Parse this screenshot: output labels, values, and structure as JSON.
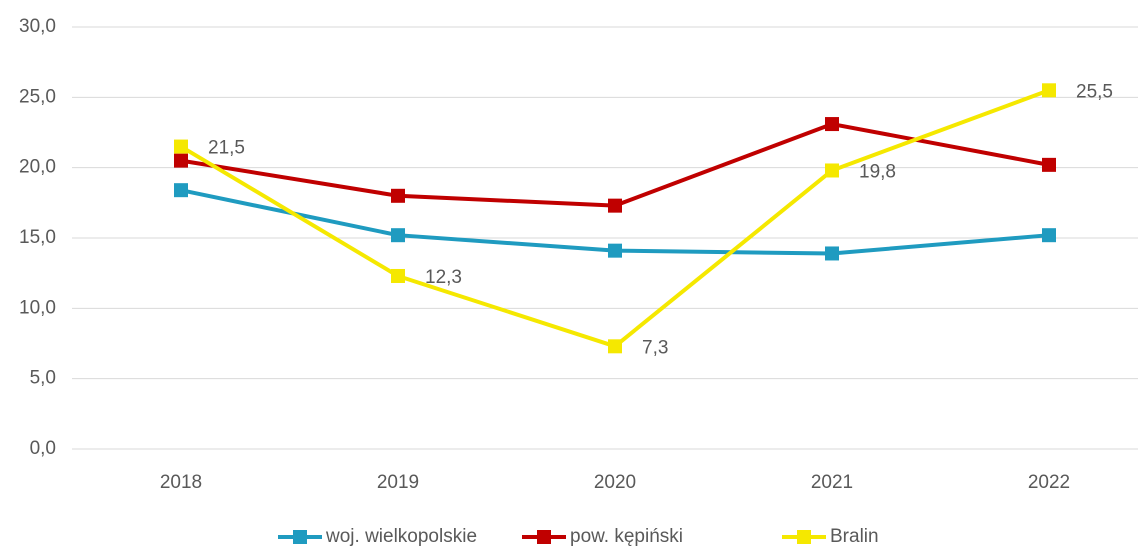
{
  "chart_data": {
    "type": "line",
    "categories": [
      "2018",
      "2019",
      "2020",
      "2021",
      "2022"
    ],
    "series": [
      {
        "name": "woj. wielkopolskie",
        "color": "#1f9bc0",
        "values": [
          18.4,
          15.2,
          14.1,
          13.9,
          15.2
        ]
      },
      {
        "name": "pow. kępiński",
        "color": "#c00000",
        "values": [
          20.5,
          18.0,
          17.3,
          23.1,
          20.2
        ]
      },
      {
        "name": "Bralin",
        "color": "#f5e800",
        "values": [
          21.5,
          12.3,
          7.3,
          19.8,
          25.5
        ],
        "value_labels": [
          "21,5",
          "12,3",
          "7,3",
          "19,8",
          "25,5"
        ]
      }
    ],
    "ylim": [
      0,
      30
    ],
    "yticks": [
      {
        "value": 0,
        "label": "0,0"
      },
      {
        "value": 5,
        "label": "5,0"
      },
      {
        "value": 10,
        "label": "10,0"
      },
      {
        "value": 15,
        "label": "15,0"
      },
      {
        "value": 20,
        "label": "20,0"
      },
      {
        "value": 25,
        "label": "25,0"
      },
      {
        "value": 30,
        "label": "30,0"
      }
    ],
    "grid": true,
    "legend": "bottom"
  }
}
